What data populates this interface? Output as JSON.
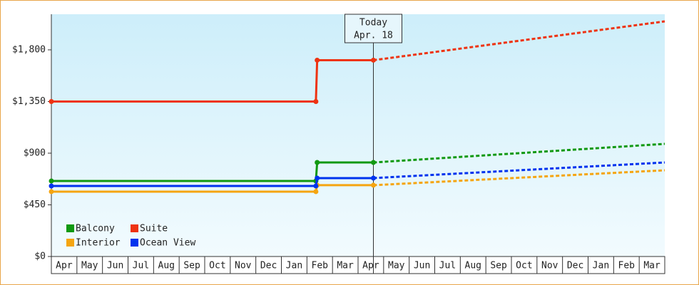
{
  "chart_data": {
    "type": "line",
    "categories": [
      "Apr",
      "May",
      "Jun",
      "Jul",
      "Aug",
      "Sep",
      "Oct",
      "Nov",
      "Dec",
      "Jan",
      "Feb",
      "Mar",
      "Apr",
      "May",
      "Jun",
      "Jul",
      "Aug",
      "Sep",
      "Oct",
      "Nov",
      "Dec",
      "Jan",
      "Feb",
      "Mar"
    ],
    "xlim": [
      0,
      24
    ],
    "ylim": [
      0,
      2110
    ],
    "yticks": [
      {
        "value": 0,
        "label": "$0"
      },
      {
        "value": 450,
        "label": "$450"
      },
      {
        "value": 900,
        "label": "$900"
      },
      {
        "value": 1350,
        "label": "$1,350"
      },
      {
        "value": 1800,
        "label": "$1,800"
      }
    ],
    "legend": "lower left",
    "annotation": {
      "x": 12.6,
      "lines": [
        "Today",
        "Apr. 18"
      ]
    },
    "series": [
      {
        "name": "Balcony",
        "color": "#119911",
        "x": [
          0,
          10.35,
          10.4,
          12.6
        ],
        "values": [
          658,
          658,
          819,
          819
        ],
        "forecast": {
          "x": [
            12.6,
            24
          ],
          "values": [
            819,
            981
          ]
        }
      },
      {
        "name": "Suite",
        "color": "#ee3311",
        "x": [
          0,
          10.35,
          10.4,
          12.6
        ],
        "values": [
          1350,
          1350,
          1710,
          1710
        ],
        "forecast": {
          "x": [
            12.6,
            24
          ],
          "values": [
            1710,
            2048
          ]
        }
      },
      {
        "name": "Interior",
        "color": "#f5a511",
        "x": [
          0,
          10.35,
          10.4,
          12.6
        ],
        "values": [
          565,
          565,
          621,
          621
        ],
        "forecast": {
          "x": [
            12.6,
            24
          ],
          "values": [
            621,
            751
          ]
        }
      },
      {
        "name": "Ocean View",
        "color": "#0033ee",
        "x": [
          0,
          10.35,
          10.4,
          12.6
        ],
        "values": [
          614,
          614,
          683,
          683
        ],
        "forecast": {
          "x": [
            12.6,
            24
          ],
          "values": [
            683,
            819
          ]
        }
      }
    ]
  }
}
